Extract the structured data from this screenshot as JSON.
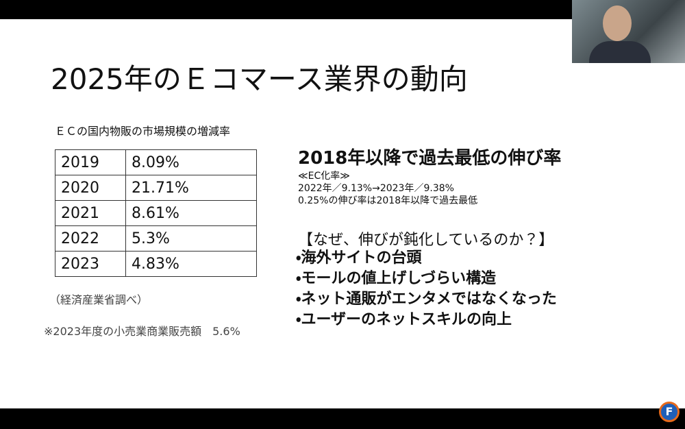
{
  "slide": {
    "title": "2025年のＥコマース業界の動向",
    "table_caption": "ＥＣの国内物販の市場規模の増減率",
    "table": {
      "rows": [
        [
          "2019",
          "8.09%"
        ],
        [
          "2020",
          "21.71%"
        ],
        [
          "2021",
          "8.61%"
        ],
        [
          "2022",
          "5.3%"
        ],
        [
          "2023",
          "4.83%"
        ]
      ]
    },
    "source": "（経済産業省調べ）",
    "note": "※2023年度の小売業商業販売額　5.6%",
    "heading": "2018年以降で過去最低の伸び率",
    "details": [
      "≪EC化率≫",
      "2022年／9.13%→2023年／9.38%",
      "0.25%の伸び率は2018年以降で過去最低"
    ],
    "question": "【なぜ、伸びが鈍化しているのか？】",
    "bullets": [
      "・海外サイトの台頭",
      "・モールの値上げしづらい構造",
      "・ネット通販がエンタメではなくなった",
      "・ユーザーのネットスキルの向上"
    ]
  },
  "logo": "F"
}
